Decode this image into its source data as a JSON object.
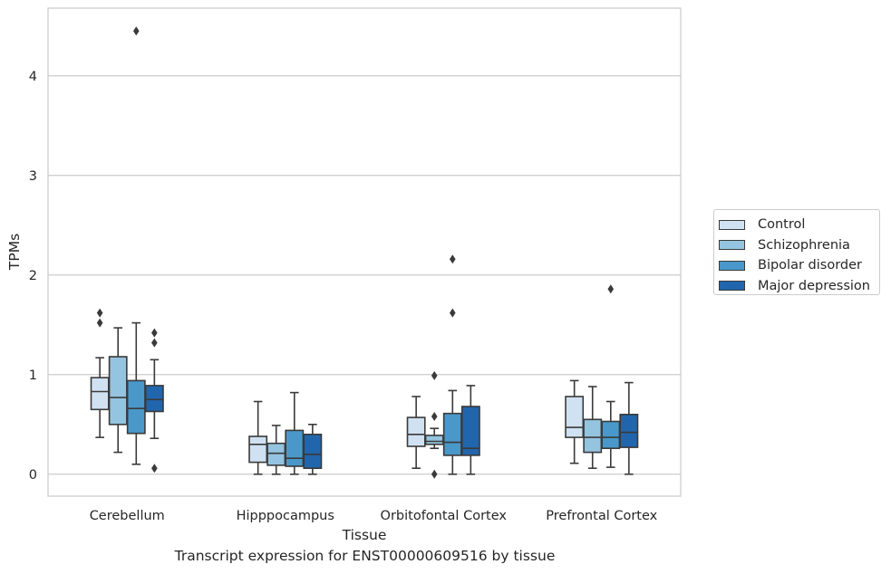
{
  "chart_data": {
    "type": "box",
    "caption": "Transcript expression for ENST00000609516 by tissue",
    "xlabel": "Tissue",
    "ylabel": "TPMs",
    "ylim": [
      -0.22,
      4.68
    ],
    "yticks": [
      0,
      1,
      2,
      3,
      4
    ],
    "grid": true,
    "legend_position": "right",
    "categories": [
      "Cerebellum",
      "Hipppocampus",
      "Orbitofontal Cortex",
      "Prefrontal Cortex"
    ],
    "series": [
      {
        "name": "Control",
        "color": "#d0e1f2",
        "boxes": [
          {
            "whislo": 0.37,
            "q1": 0.65,
            "med": 0.83,
            "q3": 0.97,
            "whishi": 1.17,
            "fliers": [
              1.52,
              1.62
            ]
          },
          {
            "whislo": 0.0,
            "q1": 0.12,
            "med": 0.3,
            "q3": 0.38,
            "whishi": 0.73,
            "fliers": []
          },
          {
            "whislo": 0.06,
            "q1": 0.28,
            "med": 0.4,
            "q3": 0.57,
            "whishi": 0.78,
            "fliers": []
          },
          {
            "whislo": 0.11,
            "q1": 0.37,
            "med": 0.47,
            "q3": 0.78,
            "whishi": 0.94,
            "fliers": []
          }
        ]
      },
      {
        "name": "Schizophrenia",
        "color": "#94c4df",
        "boxes": [
          {
            "whislo": 0.22,
            "q1": 0.5,
            "med": 0.77,
            "q3": 1.18,
            "whishi": 1.47,
            "fliers": []
          },
          {
            "whislo": 0.0,
            "q1": 0.09,
            "med": 0.21,
            "q3": 0.31,
            "whishi": 0.49,
            "fliers": []
          },
          {
            "whislo": 0.26,
            "q1": 0.3,
            "med": 0.33,
            "q3": 0.39,
            "whishi": 0.46,
            "fliers": [
              0.0,
              0.58,
              0.99
            ]
          },
          {
            "whislo": 0.06,
            "q1": 0.22,
            "med": 0.37,
            "q3": 0.55,
            "whishi": 0.88,
            "fliers": []
          }
        ]
      },
      {
        "name": "Bipolar disorder",
        "color": "#4a98c9",
        "boxes": [
          {
            "whislo": 0.1,
            "q1": 0.41,
            "med": 0.66,
            "q3": 0.94,
            "whishi": 1.52,
            "fliers": [
              4.45
            ]
          },
          {
            "whislo": 0.0,
            "q1": 0.08,
            "med": 0.16,
            "q3": 0.44,
            "whishi": 0.82,
            "fliers": []
          },
          {
            "whislo": 0.0,
            "q1": 0.19,
            "med": 0.32,
            "q3": 0.61,
            "whishi": 0.84,
            "fliers": [
              1.62,
              2.16
            ]
          },
          {
            "whislo": 0.07,
            "q1": 0.26,
            "med": 0.37,
            "q3": 0.53,
            "whishi": 0.73,
            "fliers": [
              1.86
            ]
          }
        ]
      },
      {
        "name": "Major depression",
        "color": "#2166ac",
        "boxes": [
          {
            "whislo": 0.36,
            "q1": 0.63,
            "med": 0.75,
            "q3": 0.89,
            "whishi": 1.15,
            "fliers": [
              0.06,
              1.32,
              1.42
            ]
          },
          {
            "whislo": 0.0,
            "q1": 0.06,
            "med": 0.2,
            "q3": 0.4,
            "whishi": 0.5,
            "fliers": []
          },
          {
            "whislo": 0.0,
            "q1": 0.19,
            "med": 0.26,
            "q3": 0.68,
            "whishi": 0.89,
            "fliers": []
          },
          {
            "whislo": 0.0,
            "q1": 0.27,
            "med": 0.42,
            "q3": 0.6,
            "whishi": 0.92,
            "fliers": []
          }
        ]
      }
    ]
  }
}
